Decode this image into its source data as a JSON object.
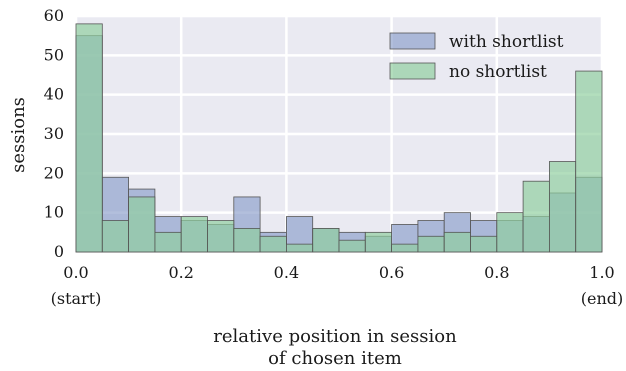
{
  "chart_data": {
    "type": "bar",
    "subtype": "overlapping-histogram",
    "xlabel_lines": [
      "relative position in session",
      "of chosen item"
    ],
    "ylabel": "sessions",
    "xlim": [
      0,
      1
    ],
    "ylim": [
      0,
      60
    ],
    "bin_width": 0.05,
    "bin_starts": [
      0.0,
      0.05,
      0.1,
      0.15,
      0.2,
      0.25,
      0.3,
      0.35,
      0.4,
      0.45,
      0.5,
      0.55,
      0.6,
      0.65,
      0.7,
      0.75,
      0.8,
      0.85,
      0.9,
      0.95
    ],
    "x_ticks": [
      {
        "value": 0.0,
        "label": "0.0",
        "sublabel": "(start)"
      },
      {
        "value": 0.2,
        "label": "0.2",
        "sublabel": ""
      },
      {
        "value": 0.4,
        "label": "0.4",
        "sublabel": ""
      },
      {
        "value": 0.6,
        "label": "0.6",
        "sublabel": ""
      },
      {
        "value": 0.8,
        "label": "0.8",
        "sublabel": ""
      },
      {
        "value": 1.0,
        "label": "1.0",
        "sublabel": "(end)"
      }
    ],
    "y_ticks": [
      0,
      10,
      20,
      30,
      40,
      50,
      60
    ],
    "series": [
      {
        "name": "with shortlist",
        "color": "#8da0cb",
        "values": [
          55,
          19,
          16,
          9,
          8,
          7,
          14,
          5,
          9,
          6,
          5,
          4,
          7,
          8,
          10,
          8,
          8,
          9,
          15,
          19
        ]
      },
      {
        "name": "no shortlist",
        "color": "#8fcf9e",
        "values": [
          58,
          8,
          14,
          5,
          9,
          8,
          6,
          4,
          2,
          6,
          3,
          5,
          2,
          4,
          5,
          4,
          10,
          18,
          23,
          46
        ]
      }
    ],
    "grid": true,
    "background_color": "#eaeaf2",
    "legend_position": "top-right"
  }
}
